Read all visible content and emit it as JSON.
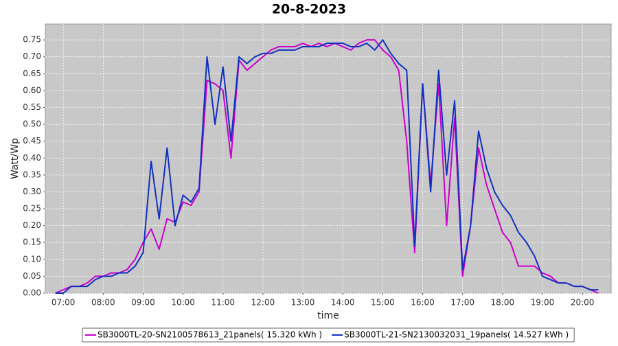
{
  "chart_data": {
    "type": "line",
    "title": "20-8-2023",
    "x_label": "time",
    "y_label": "Watt/Wp",
    "x": [
      6.8,
      7.0,
      7.2,
      7.4,
      7.6,
      7.8,
      8.0,
      8.2,
      8.4,
      8.6,
      8.8,
      9.0,
      9.2,
      9.4,
      9.6,
      9.8,
      10.0,
      10.2,
      10.4,
      10.6,
      10.8,
      11.0,
      11.2,
      11.4,
      11.6,
      11.8,
      12.0,
      12.2,
      12.4,
      12.6,
      12.8,
      13.0,
      13.2,
      13.4,
      13.6,
      13.8,
      14.0,
      14.2,
      14.4,
      14.6,
      14.8,
      15.0,
      15.2,
      15.4,
      15.6,
      15.8,
      16.0,
      16.2,
      16.4,
      16.6,
      16.8,
      17.0,
      17.2,
      17.4,
      17.6,
      17.8,
      18.0,
      18.2,
      18.4,
      18.6,
      18.8,
      19.0,
      19.2,
      19.4,
      19.6,
      19.8,
      20.0,
      20.2,
      20.4
    ],
    "series": [
      {
        "name": "SB3000TL-20-SN2100578613_21panels( 15.320 kWh )",
        "color": "#cc00cc",
        "values": [
          0.0,
          0.01,
          0.02,
          0.02,
          0.03,
          0.05,
          0.05,
          0.06,
          0.06,
          0.07,
          0.1,
          0.15,
          0.19,
          0.13,
          0.22,
          0.21,
          0.27,
          0.26,
          0.3,
          0.63,
          0.62,
          0.6,
          0.4,
          0.69,
          0.66,
          0.68,
          0.7,
          0.72,
          0.73,
          0.73,
          0.73,
          0.74,
          0.73,
          0.74,
          0.73,
          0.74,
          0.73,
          0.72,
          0.74,
          0.75,
          0.75,
          0.72,
          0.7,
          0.66,
          0.45,
          0.12,
          0.62,
          0.32,
          0.62,
          0.2,
          0.52,
          0.05,
          0.2,
          0.43,
          0.32,
          0.25,
          0.18,
          0.15,
          0.08,
          0.08,
          0.08,
          0.06,
          0.05,
          0.03,
          0.03,
          0.02,
          0.02,
          0.01,
          0.0
        ]
      },
      {
        "name": "SB3000TL-21-SN2130032031_19panels( 14.527 kWh )",
        "color": "#1030c0",
        "values": [
          0.0,
          0.0,
          0.02,
          0.02,
          0.02,
          0.04,
          0.05,
          0.05,
          0.06,
          0.06,
          0.08,
          0.12,
          0.39,
          0.22,
          0.43,
          0.2,
          0.29,
          0.27,
          0.31,
          0.7,
          0.5,
          0.67,
          0.45,
          0.7,
          0.68,
          0.7,
          0.71,
          0.71,
          0.72,
          0.72,
          0.72,
          0.73,
          0.73,
          0.73,
          0.74,
          0.74,
          0.74,
          0.73,
          0.73,
          0.74,
          0.72,
          0.75,
          0.71,
          0.68,
          0.66,
          0.14,
          0.62,
          0.3,
          0.66,
          0.35,
          0.57,
          0.07,
          0.2,
          0.48,
          0.37,
          0.3,
          0.26,
          0.23,
          0.18,
          0.15,
          0.11,
          0.05,
          0.04,
          0.03,
          0.03,
          0.02,
          0.02,
          0.01,
          0.01
        ]
      }
    ],
    "xlim": [
      6.55,
      20.72
    ],
    "ylim": [
      0,
      0.797
    ],
    "xticks": [
      {
        "value": 7,
        "label": "07:00"
      },
      {
        "value": 8,
        "label": "08:00"
      },
      {
        "value": 9,
        "label": "09:00"
      },
      {
        "value": 10,
        "label": "10:00"
      },
      {
        "value": 11,
        "label": "11:00"
      },
      {
        "value": 12,
        "label": "12:00"
      },
      {
        "value": 13,
        "label": "13:00"
      },
      {
        "value": 14,
        "label": "14:00"
      },
      {
        "value": 15,
        "label": "15:00"
      },
      {
        "value": 16,
        "label": "16:00"
      },
      {
        "value": 17,
        "label": "17:00"
      },
      {
        "value": 18,
        "label": "18:00"
      },
      {
        "value": 19,
        "label": "19:00"
      },
      {
        "value": 20,
        "label": "20:00"
      }
    ],
    "yticks": [
      {
        "value": 0,
        "label": "0.00"
      },
      {
        "value": 0.05,
        "label": "0.05"
      },
      {
        "value": 0.1,
        "label": "0.10"
      },
      {
        "value": 0.15,
        "label": "0.15"
      },
      {
        "value": 0.2,
        "label": "0.20"
      },
      {
        "value": 0.25,
        "label": "0.25"
      },
      {
        "value": 0.3,
        "label": "0.30"
      },
      {
        "value": 0.35,
        "label": "0.35"
      },
      {
        "value": 0.4,
        "label": "0.40"
      },
      {
        "value": 0.45,
        "label": "0.45"
      },
      {
        "value": 0.5,
        "label": "0.50"
      },
      {
        "value": 0.55,
        "label": "0.55"
      },
      {
        "value": 0.6,
        "label": "0.60"
      },
      {
        "value": 0.65,
        "label": "0.65"
      },
      {
        "value": 0.7,
        "label": "0.70"
      },
      {
        "value": 0.75,
        "label": "0.75"
      }
    ],
    "grid": true,
    "legend_position": "bottom"
  }
}
